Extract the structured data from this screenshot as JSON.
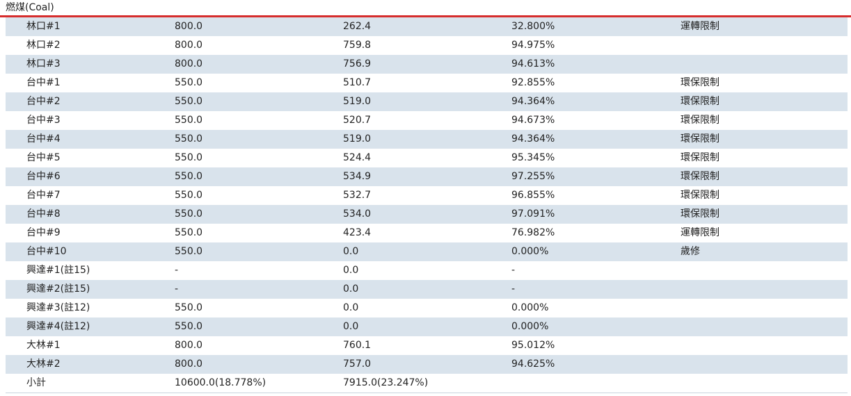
{
  "section": {
    "title": "燃煤(Coal)"
  },
  "rows": [
    {
      "name": "林口#1",
      "capacity": "800.0",
      "generation": "262.4",
      "ratio": "32.800%",
      "note": "運轉限制"
    },
    {
      "name": "林口#2",
      "capacity": "800.0",
      "generation": "759.8",
      "ratio": "94.975%",
      "note": ""
    },
    {
      "name": "林口#3",
      "capacity": "800.0",
      "generation": "756.9",
      "ratio": "94.613%",
      "note": ""
    },
    {
      "name": "台中#1",
      "capacity": "550.0",
      "generation": "510.7",
      "ratio": "92.855%",
      "note": "環保限制"
    },
    {
      "name": "台中#2",
      "capacity": "550.0",
      "generation": "519.0",
      "ratio": "94.364%",
      "note": "環保限制"
    },
    {
      "name": "台中#3",
      "capacity": "550.0",
      "generation": "520.7",
      "ratio": "94.673%",
      "note": "環保限制"
    },
    {
      "name": "台中#4",
      "capacity": "550.0",
      "generation": "519.0",
      "ratio": "94.364%",
      "note": "環保限制"
    },
    {
      "name": "台中#5",
      "capacity": "550.0",
      "generation": "524.4",
      "ratio": "95.345%",
      "note": "環保限制"
    },
    {
      "name": "台中#6",
      "capacity": "550.0",
      "generation": "534.9",
      "ratio": "97.255%",
      "note": "環保限制"
    },
    {
      "name": "台中#7",
      "capacity": "550.0",
      "generation": "532.7",
      "ratio": "96.855%",
      "note": "環保限制"
    },
    {
      "name": "台中#8",
      "capacity": "550.0",
      "generation": "534.0",
      "ratio": "97.091%",
      "note": "環保限制"
    },
    {
      "name": "台中#9",
      "capacity": "550.0",
      "generation": "423.4",
      "ratio": "76.982%",
      "note": "運轉限制"
    },
    {
      "name": "台中#10",
      "capacity": "550.0",
      "generation": "0.0",
      "ratio": "0.000%",
      "note": "歲修"
    },
    {
      "name": "興達#1(註15)",
      "capacity": "-",
      "generation": "0.0",
      "ratio": "-",
      "note": ""
    },
    {
      "name": "興達#2(註15)",
      "capacity": "-",
      "generation": "0.0",
      "ratio": "-",
      "note": ""
    },
    {
      "name": "興達#3(註12)",
      "capacity": "550.0",
      "generation": "0.0",
      "ratio": "0.000%",
      "note": ""
    },
    {
      "name": "興達#4(註12)",
      "capacity": "550.0",
      "generation": "0.0",
      "ratio": "0.000%",
      "note": ""
    },
    {
      "name": "大林#1",
      "capacity": "800.0",
      "generation": "760.1",
      "ratio": "95.012%",
      "note": ""
    },
    {
      "name": "大林#2",
      "capacity": "800.0",
      "generation": "757.0",
      "ratio": "94.625%",
      "note": ""
    }
  ],
  "subtotal": {
    "name": "小計",
    "capacity": "10600.0(18.778%)",
    "generation": "7915.0(23.247%)",
    "ratio": "",
    "note": ""
  }
}
